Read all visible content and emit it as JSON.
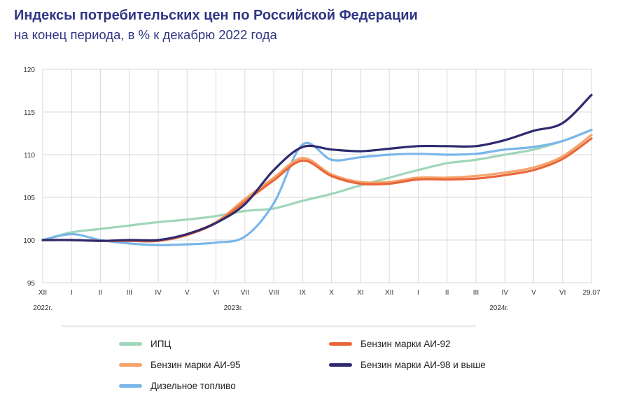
{
  "header": {
    "title": "Индексы потребительских цен по Российской Федерации",
    "subtitle": "на конец периода, в % к декабрю 2022 года"
  },
  "chart_data": {
    "type": "line",
    "ylim": [
      95,
      120
    ],
    "y_ticks": [
      95,
      100,
      105,
      110,
      115,
      120
    ],
    "grid": true,
    "x_labels": [
      "XII",
      "I",
      "II",
      "III",
      "IV",
      "V",
      "VI",
      "VII",
      "VIII",
      "IX",
      "X",
      "XI",
      "XII",
      "I",
      "II",
      "III",
      "IV",
      "V",
      "VI",
      "29.07"
    ],
    "year_labels": [
      {
        "text": "2022г.",
        "at": 0
      },
      {
        "text": "2023г.",
        "at": 6.6
      },
      {
        "text": "2024г.",
        "at": 15.8
      }
    ],
    "legend_position": "bottom",
    "series": [
      {
        "name": "ИПЦ",
        "color": "#9fd6b9",
        "values": [
          100,
          100.9,
          101.3,
          101.7,
          102.1,
          102.4,
          102.8,
          103.4,
          103.7,
          104.6,
          105.4,
          106.4,
          107.3,
          108.2,
          109.0,
          109.4,
          110.0,
          110.6,
          111.6,
          112.9
        ]
      },
      {
        "name": "Бензин марки АИ-92",
        "color": "#e8663a",
        "values": [
          100,
          100,
          99.9,
          99.9,
          99.9,
          100.6,
          102.0,
          104.5,
          107.0,
          109.3,
          107.5,
          106.6,
          106.6,
          107.1,
          107.1,
          107.2,
          107.6,
          108.2,
          109.5,
          111.9
        ]
      },
      {
        "name": "Бензин марки АИ-95",
        "color": "#f5a36a",
        "values": [
          100,
          100,
          99.9,
          99.9,
          99.9,
          100.7,
          102.1,
          104.8,
          107.3,
          109.6,
          107.7,
          106.8,
          106.8,
          107.3,
          107.3,
          107.5,
          107.9,
          108.5,
          109.8,
          112.3
        ]
      },
      {
        "name": "Бензин марки АИ-98 и выше",
        "color": "#2e2a6e",
        "values": [
          100,
          100,
          99.9,
          100,
          100,
          100.7,
          102.0,
          104.2,
          108.2,
          110.9,
          110.6,
          110.4,
          110.7,
          111.0,
          111.0,
          111.0,
          111.7,
          112.8,
          113.7,
          117.0
        ]
      },
      {
        "name": "Дизельное топливо",
        "color": "#7ab6ea",
        "values": [
          100,
          100.7,
          100.0,
          99.6,
          99.4,
          99.5,
          99.7,
          100.4,
          104.3,
          111.2,
          109.4,
          109.7,
          110.0,
          110.1,
          110.0,
          110.1,
          110.6,
          110.9,
          111.6,
          112.9
        ]
      }
    ]
  }
}
